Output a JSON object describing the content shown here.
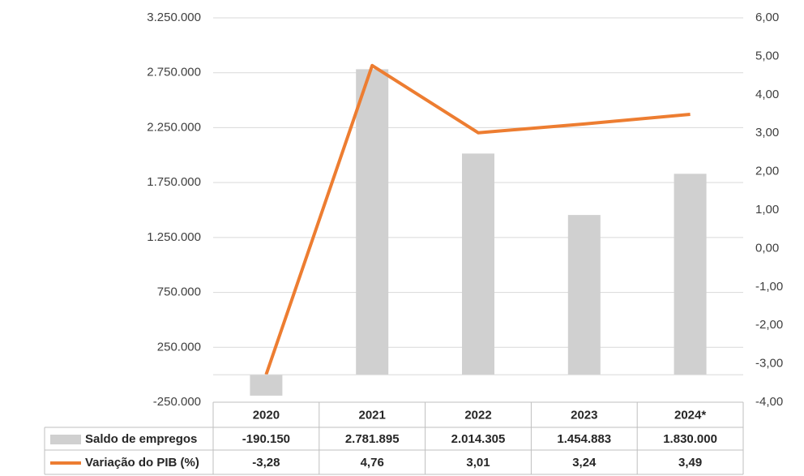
{
  "chart_data": {
    "type": "bar-line",
    "categories": [
      "2020",
      "2021",
      "2022",
      "2023",
      "2024*"
    ],
    "series": [
      {
        "name": "Saldo de empregos",
        "type": "bar",
        "color": "#d0d0d0",
        "axis": "y",
        "values": [
          -190150,
          2781895,
          2014305,
          1454883,
          1830000
        ],
        "value_labels": [
          "-190.150",
          "2.781.895",
          "2.014.305",
          "1.454.883",
          "1.830.000"
        ]
      },
      {
        "name": "Variação do PIB (%)",
        "type": "line",
        "color": "#ed7d31",
        "axis": "y2",
        "values": [
          -3.28,
          4.76,
          3.01,
          3.24,
          3.49
        ],
        "value_labels": [
          "-3,28",
          "4,76",
          "3,01",
          "3,24",
          "3,49"
        ]
      }
    ],
    "ylim": [
      -250000,
      3250000
    ],
    "yticks": [
      {
        "value": -250000,
        "label": "-250.000"
      },
      {
        "value": 250000,
        "label": "250.000"
      },
      {
        "value": 750000,
        "label": "750.000"
      },
      {
        "value": 1250000,
        "label": "1.250.000"
      },
      {
        "value": 1750000,
        "label": "1.750.000"
      },
      {
        "value": 2250000,
        "label": "2.250.000"
      },
      {
        "value": 2750000,
        "label": "2.750.000"
      },
      {
        "value": 3250000,
        "label": "3.250.000"
      }
    ],
    "y2lim": [
      -4,
      6
    ],
    "y2ticks": [
      {
        "value": -4,
        "label": "-4,00"
      },
      {
        "value": -3,
        "label": "-3,00"
      },
      {
        "value": -2,
        "label": "-2,00"
      },
      {
        "value": -1,
        "label": "-1,00"
      },
      {
        "value": 0,
        "label": "0,00"
      },
      {
        "value": 1,
        "label": "1,00"
      },
      {
        "value": 2,
        "label": "2,00"
      },
      {
        "value": 3,
        "label": "3,00"
      },
      {
        "value": 4,
        "label": "4,00"
      },
      {
        "value": 5,
        "label": "5,00"
      },
      {
        "value": 6,
        "label": "6,00"
      }
    ],
    "grid": true
  }
}
